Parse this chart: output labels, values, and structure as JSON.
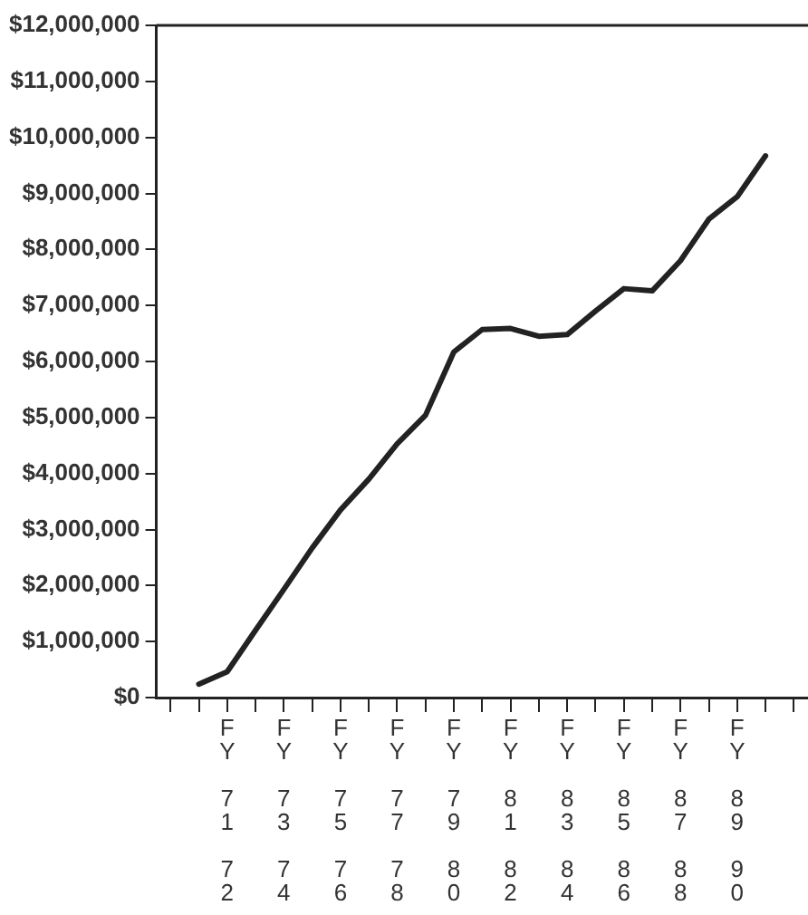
{
  "chart_data": {
    "type": "line",
    "categories": [
      null,
      null,
      "FY 71 72",
      null,
      "FY 73 74",
      null,
      "FY 75 76",
      null,
      "FY 77 78",
      null,
      "FY 79 80",
      null,
      "FY 81 82",
      null,
      "FY 83 84",
      null,
      "FY 85 86",
      null,
      "FY 87 88",
      null,
      "FY 89 90",
      null,
      null
    ],
    "series": [
      {
        "color": "#222222",
        "values": [
          null,
          240000,
          460000,
          1200000,
          1930000,
          2670000,
          3350000,
          3900000,
          4530000,
          5040000,
          6170000,
          6570000,
          6590000,
          6450000,
          6480000,
          6900000,
          7300000,
          7260000,
          7800000,
          8540000,
          8940000,
          9670000,
          null
        ]
      }
    ],
    "ylim": [
      0,
      12000000
    ],
    "yticks": [
      {
        "value": 0,
        "label": "$0"
      },
      {
        "value": 1000000,
        "label": "$1,000,000"
      },
      {
        "value": 2000000,
        "label": "$2,000,000"
      },
      {
        "value": 3000000,
        "label": "$3,000,000"
      },
      {
        "value": 4000000,
        "label": "$4,000,000"
      },
      {
        "value": 5000000,
        "label": "$5,000,000"
      },
      {
        "value": 6000000,
        "label": "$6,000,000"
      },
      {
        "value": 7000000,
        "label": "$7,000,000"
      },
      {
        "value": 8000000,
        "label": "$8,000,000"
      },
      {
        "value": 9000000,
        "label": "$9,000,000"
      },
      {
        "value": 10000000,
        "label": "$10,000,000"
      },
      {
        "value": 11000000,
        "label": "$11,000,000"
      },
      {
        "value": 12000000,
        "label": "$12,000,000"
      }
    ],
    "grid": false,
    "legend": false,
    "marker": "none",
    "line_style": "solid"
  }
}
